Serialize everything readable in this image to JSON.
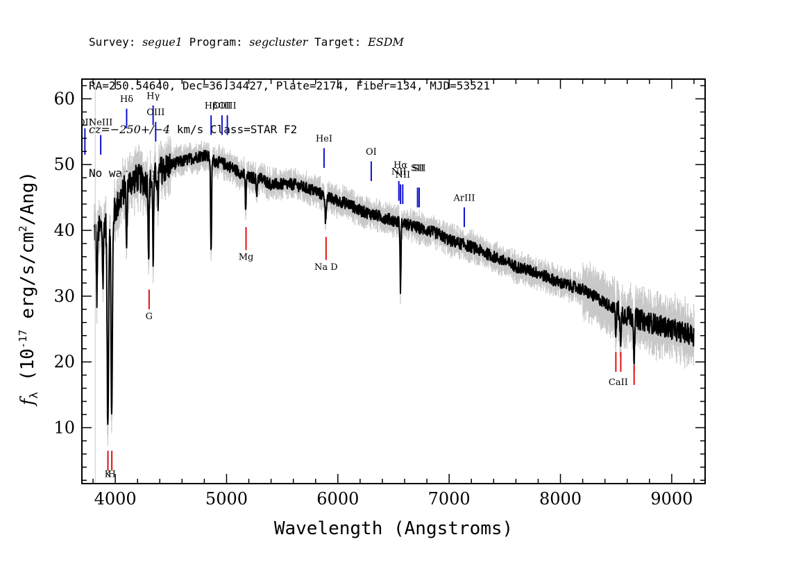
{
  "header": {
    "line1": {
      "survey_label": "Survey:",
      "survey": "segue1",
      "program_label": "Program:",
      "program": "segcluster",
      "target_label": "Target:",
      "target": "ESDM"
    },
    "line2": "RA=250.54640, Dec=36.34427, Plate=2174, Fiber=134, MJD=53521",
    "line3": {
      "cz": "cz=",
      "value": "−250+/−4",
      "unit": " km/s Class=STAR F2"
    },
    "line4": "No warnings."
  },
  "colors": {
    "spectrum": "#000000",
    "error": "#c8c8c8",
    "emission": "#1010d0",
    "absorption": "#e01010",
    "axis": "#000000"
  },
  "chart_data": {
    "type": "line",
    "xlabel": "Wavelength (Angstroms)",
    "ylabel": "f_λ (10^-17 erg/s/cm^2/Ang)",
    "xlim": [
      3700,
      9300
    ],
    "ylim": [
      1.5,
      63
    ],
    "xticks": [
      4000,
      5000,
      6000,
      7000,
      8000,
      9000
    ],
    "yticks": [
      10,
      20,
      30,
      40,
      50,
      60
    ],
    "xminor_step": 200,
    "yminor_step": 2,
    "continuum": {
      "x": [
        3800,
        3850,
        3900,
        4000,
        4100,
        4200,
        4300,
        4400,
        4500,
        4600,
        4700,
        4800,
        4900,
        5000,
        5100,
        5200,
        5300,
        5400,
        5500,
        5600,
        5700,
        5800,
        5900,
        6000,
        6100,
        6200,
        6300,
        6400,
        6500,
        6600,
        6700,
        6800,
        6900,
        7000,
        7200,
        7400,
        7600,
        7800,
        8000,
        8200,
        8400,
        8600,
        8800,
        9000,
        9200
      ],
      "y": [
        40,
        40,
        41,
        43,
        47,
        48,
        47,
        49,
        50,
        50.5,
        51,
        51.5,
        50.5,
        50,
        49,
        48,
        48,
        47,
        47,
        47,
        46.5,
        46,
        45,
        44.5,
        44,
        43,
        42.5,
        42,
        41.5,
        41,
        40.5,
        40,
        39.5,
        38.5,
        37.5,
        36,
        34.5,
        33.5,
        32,
        31,
        29,
        27,
        26,
        25,
        24
      ]
    },
    "absorption_features": [
      {
        "x": 3835,
        "depth": 10
      },
      {
        "x": 3889,
        "depth": 9
      },
      {
        "x": 3933,
        "depth": 32
      },
      {
        "x": 3968,
        "depth": 31
      },
      {
        "x": 4102,
        "depth": 10
      },
      {
        "x": 4300,
        "depth": 11
      },
      {
        "x": 4341,
        "depth": 12
      },
      {
        "x": 4383,
        "depth": 5
      },
      {
        "x": 4861,
        "depth": 15
      },
      {
        "x": 5172,
        "depth": 5
      },
      {
        "x": 5270,
        "depth": 3
      },
      {
        "x": 5890,
        "depth": 4
      },
      {
        "x": 6563,
        "depth": 10
      },
      {
        "x": 8498,
        "depth": 4
      },
      {
        "x": 8542,
        "depth": 6
      },
      {
        "x": 8662,
        "depth": 6
      }
    ],
    "emission_lines": [
      {
        "label": "OII",
        "x": 3727,
        "y0": 51.5,
        "y1": 55.5,
        "label_y": 56
      },
      {
        "label": "NeIII",
        "x": 3869,
        "y0": 51.5,
        "y1": 54.5,
        "label_y": 56
      },
      {
        "label": "Hδ",
        "x": 4102,
        "y0": 55.5,
        "y1": 58.5,
        "label_y": 59.5
      },
      {
        "label": "Hγ",
        "x": 4340,
        "y0": 56,
        "y1": 59,
        "label_y": 60
      },
      {
        "label": "OIII",
        "x": 4363,
        "y0": 53.5,
        "y1": 56.5,
        "label_y": 57.5
      },
      {
        "label": "Hβ",
        "x": 4861,
        "y0": 54.5,
        "y1": 57.5,
        "label_y": 58.5
      },
      {
        "label": "OIII",
        "x": 4959,
        "y0": 54.5,
        "y1": 57.5,
        "label_y": 58.5
      },
      {
        "label": "OIII",
        "x": 5007,
        "y0": 54.5,
        "y1": 57.5,
        "label_y": 58.5
      },
      {
        "label": "HeI",
        "x": 5876,
        "y0": 49.5,
        "y1": 52.5,
        "label_y": 53.5
      },
      {
        "label": "OI",
        "x": 6300,
        "y0": 47.5,
        "y1": 50.5,
        "label_y": 51.5
      },
      {
        "label": "NII",
        "x": 6548,
        "y0": 44.5,
        "y1": 47.5,
        "label_y": 48.5
      },
      {
        "label": "Hα",
        "x": 6563,
        "y0": 44,
        "y1": 47,
        "label_y": 49.5
      },
      {
        "label": "NII",
        "x": 6583,
        "y0": 44,
        "y1": 47,
        "label_y": 48
      },
      {
        "label": "SII",
        "x": 6716,
        "y0": 43.5,
        "y1": 46.5,
        "label_y": 49
      },
      {
        "label": "SII",
        "x": 6731,
        "y0": 43.5,
        "y1": 46.5,
        "label_y": 49
      },
      {
        "label": "ArIII",
        "x": 7136,
        "y0": 40.5,
        "y1": 43.5,
        "label_y": 44.5
      }
    ],
    "absorption_lines": [
      {
        "label": "K",
        "x": 3934,
        "y0": 3.5,
        "y1": 6.5,
        "label_y": 2.5
      },
      {
        "label": "H",
        "x": 3969,
        "y0": 3.5,
        "y1": 6.5,
        "label_y": 2.5
      },
      {
        "label": "G",
        "x": 4304,
        "y0": 28,
        "y1": 31,
        "label_y": 26.5
      },
      {
        "label": "Mg",
        "x": 5175,
        "y0": 37,
        "y1": 40.5,
        "label_y": 35.5
      },
      {
        "label": "Na D",
        "x": 5894,
        "y0": 35.5,
        "y1": 39,
        "label_y": 34
      },
      {
        "label": "CaII",
        "x": 8498,
        "y0": 18.5,
        "y1": 21.5,
        "label_y": 16.5
      },
      {
        "label": "CaII",
        "x": 8542,
        "y0": 18.5,
        "y1": 21.5,
        "label_y": 16.5
      },
      {
        "label": "CaII",
        "x": 8662,
        "y0": 16.5,
        "y1": 19.5,
        "label_y": 16.5
      }
    ]
  }
}
